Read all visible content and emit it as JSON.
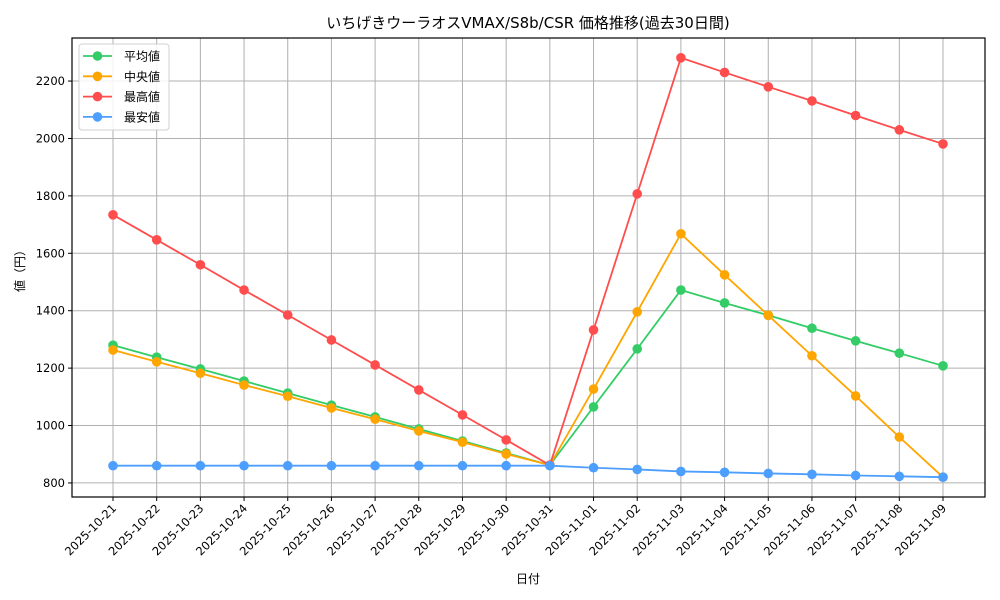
{
  "chart_data": {
    "type": "line",
    "title": "いちげきウーラオスVMAX/S8b/CSR 価格推移(過去30日間)",
    "xlabel": "日付",
    "ylabel": "値（円）",
    "ylim": [
      751,
      2350
    ],
    "yticks": [
      800,
      1000,
      1200,
      1400,
      1600,
      1800,
      2000,
      2200
    ],
    "grid": true,
    "legend_position": "upper left",
    "categories": [
      "2025-10-21",
      "2025-10-22",
      "2025-10-23",
      "2025-10-24",
      "2025-10-25",
      "2025-10-26",
      "2025-10-27",
      "2025-10-28",
      "2025-10-29",
      "2025-10-30",
      "2025-10-31",
      "2025-11-01",
      "2025-11-02",
      "2025-11-03",
      "2025-11-04",
      "2025-11-05",
      "2025-11-06",
      "2025-11-07",
      "2025-11-08",
      "2025-11-09"
    ],
    "series": [
      {
        "name": "平均値",
        "color": "#33cc66",
        "values": [
          1280,
          1238,
          1197,
          1155,
          1113,
          1071,
          1030,
          988,
          946,
          904,
          862,
          1065,
          1267,
          1472,
          1427,
          1384,
          1339,
          1295,
          1252,
          1208
        ]
      },
      {
        "name": "中央値",
        "color": "#ffa500",
        "values": [
          1263,
          1222,
          1182,
          1141,
          1102,
          1061,
          1022,
          981,
          942,
          901,
          862,
          1127,
          1396,
          1668,
          1525,
          1384,
          1243,
          1103,
          960,
          820
        ]
      },
      {
        "name": "最高値",
        "color": "#ff4d4d",
        "values": [
          1734,
          1647,
          1560,
          1472,
          1385,
          1298,
          1211,
          1124,
          1037,
          950,
          862,
          1333,
          1807,
          2281,
          2230,
          2180,
          2131,
          2080,
          2030,
          1981
        ]
      },
      {
        "name": "最安値",
        "color": "#4d9fff",
        "values": [
          860,
          860,
          860,
          860,
          860,
          860,
          860,
          860,
          860,
          860,
          860,
          853,
          847,
          840,
          837,
          833,
          830,
          826,
          823,
          820
        ]
      }
    ]
  }
}
